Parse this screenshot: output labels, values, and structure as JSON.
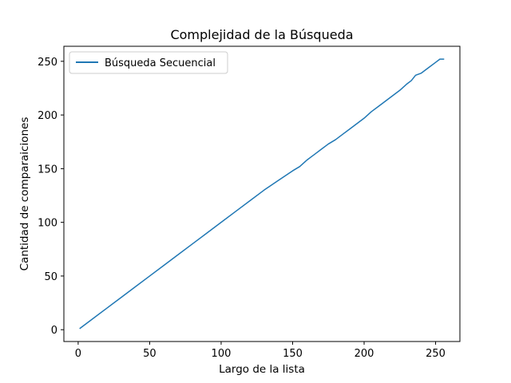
{
  "chart_data": {
    "type": "line",
    "title": "Complejidad de la Búsqueda",
    "xlabel": "Largo de la lista",
    "ylabel": "Cantidad de comparaiciones",
    "xlim": [
      -10,
      267
    ],
    "ylim": [
      -11,
      264
    ],
    "xticks": [
      0,
      50,
      100,
      150,
      200,
      250
    ],
    "yticks": [
      0,
      50,
      100,
      150,
      200,
      250
    ],
    "grid": false,
    "legend_position": "upper left",
    "series": [
      {
        "name": "Búsqueda Secuencial",
        "color": "#1f77b4",
        "x": [
          1,
          10,
          20,
          30,
          40,
          50,
          60,
          70,
          80,
          90,
          100,
          110,
          120,
          130,
          140,
          150,
          155,
          160,
          163,
          166,
          170,
          175,
          180,
          185,
          190,
          195,
          200,
          205,
          210,
          215,
          220,
          225,
          230,
          233,
          236,
          240,
          245,
          250,
          253,
          256
        ],
        "y": [
          1,
          10,
          20,
          30,
          40,
          50,
          60,
          70,
          80,
          90,
          100,
          110,
          120,
          130,
          139,
          148,
          152,
          158,
          161,
          164,
          168,
          173,
          177,
          182,
          187,
          192,
          197,
          203,
          208,
          213,
          218,
          223,
          229,
          232,
          237,
          239,
          244,
          249,
          252,
          252
        ]
      }
    ]
  }
}
